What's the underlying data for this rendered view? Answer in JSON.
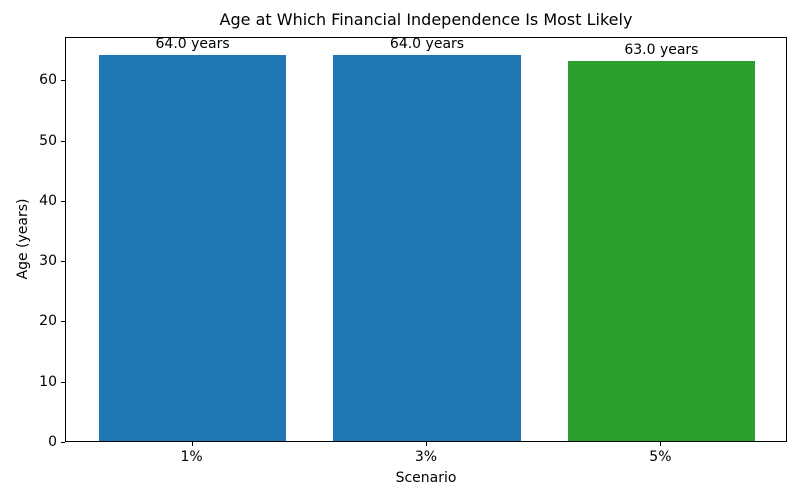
{
  "chart_data": {
    "type": "bar",
    "title": "Age at Which Financial Independence Is Most Likely",
    "xlabel": "Scenario",
    "ylabel": "Age (years)",
    "categories": [
      "1%",
      "3%",
      "5%"
    ],
    "values": [
      64.0,
      64.0,
      63.0
    ],
    "bar_labels": [
      "64.0 years",
      "64.0 years",
      "63.0 years"
    ],
    "bar_colors": [
      "#1f77b4",
      "#1f77b4",
      "#2ca02c"
    ],
    "x_positions": [
      0,
      1,
      2
    ],
    "xlim": [
      -0.54,
      2.54
    ],
    "ylim": [
      0,
      67.2
    ],
    "yticks": [
      0,
      10,
      20,
      30,
      40,
      50,
      60
    ],
    "bar_width_units": 0.8,
    "grid": false,
    "legend": null,
    "frame_color": "#000000",
    "background_color": "#ffffff"
  }
}
